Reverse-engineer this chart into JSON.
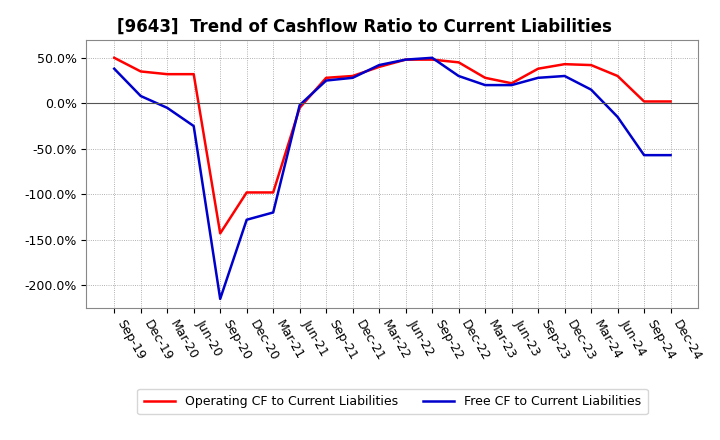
{
  "title": "[9643]  Trend of Cashflow Ratio to Current Liabilities",
  "x_labels": [
    "Sep-19",
    "Dec-19",
    "Mar-20",
    "Jun-20",
    "Sep-20",
    "Dec-20",
    "Mar-21",
    "Jun-21",
    "Sep-21",
    "Dec-21",
    "Mar-22",
    "Jun-22",
    "Sep-22",
    "Dec-22",
    "Mar-23",
    "Jun-23",
    "Sep-23",
    "Dec-23",
    "Mar-24",
    "Jun-24",
    "Sep-24",
    "Dec-24"
  ],
  "operating_cf": [
    50,
    35,
    32,
    32,
    -143,
    -98,
    -98,
    -5,
    28,
    30,
    40,
    48,
    48,
    45,
    28,
    22,
    38,
    43,
    42,
    30,
    2,
    2
  ],
  "free_cf": [
    38,
    8,
    -5,
    -25,
    -215,
    -128,
    -120,
    -2,
    25,
    28,
    42,
    48,
    50,
    30,
    20,
    20,
    28,
    30,
    15,
    -15,
    -57,
    -57
  ],
  "operating_color": "#ff0000",
  "free_color": "#0000cc",
  "ylim": [
    -225,
    70
  ],
  "yticks": [
    50.0,
    0.0,
    -50.0,
    -100.0,
    -150.0,
    -200.0
  ],
  "background_color": "#ffffff",
  "plot_bg_color": "#ffffff",
  "grid_color": "#999999",
  "legend_op": "Operating CF to Current Liabilities",
  "legend_free": "Free CF to Current Liabilities",
  "title_fontsize": 12,
  "tick_fontsize": 9,
  "legend_fontsize": 9,
  "line_width": 1.8
}
